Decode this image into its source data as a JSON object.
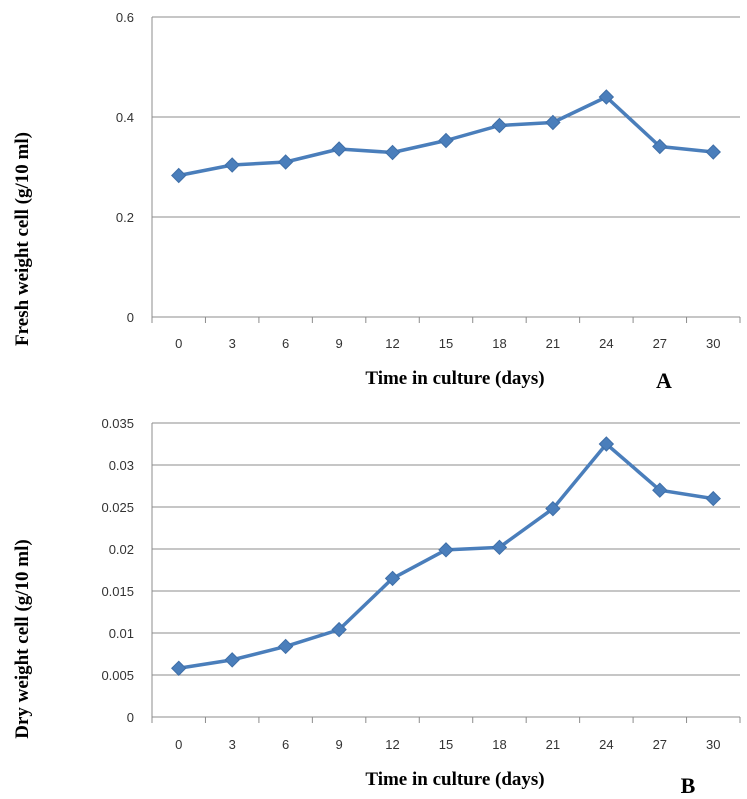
{
  "chart_data": [
    {
      "type": "line",
      "panel_label": "A",
      "xlabel": "Time in culture (days)",
      "ylabel": "Fresh weight cell (g/10 ml)",
      "categories": [
        "0",
        "3",
        "6",
        "9",
        "12",
        "15",
        "18",
        "21",
        "24",
        "27",
        "30"
      ],
      "series": [
        {
          "values": [
            0.283,
            0.304,
            0.31,
            0.336,
            0.329,
            0.353,
            0.383,
            0.389,
            0.44,
            0.341,
            0.33
          ]
        }
      ],
      "ylim": [
        0,
        0.6
      ],
      "yticks": [
        "0",
        "0.2",
        "0.4",
        "0.6"
      ],
      "grid": "horizontal",
      "line_color": "#4a7ebb"
    },
    {
      "type": "line",
      "panel_label": "B",
      "xlabel": "Time in culture (days)",
      "ylabel": "Dry weight cell (g/10 ml)",
      "categories": [
        "0",
        "3",
        "6",
        "9",
        "12",
        "15",
        "18",
        "21",
        "24",
        "27",
        "30"
      ],
      "series": [
        {
          "values": [
            0.0058,
            0.0068,
            0.0084,
            0.0104,
            0.0165,
            0.0199,
            0.0202,
            0.0248,
            0.0325,
            0.027,
            0.026
          ]
        }
      ],
      "ylim": [
        0,
        0.035
      ],
      "yticks": [
        "0",
        "0.005",
        "0.01",
        "0.015",
        "0.02",
        "0.025",
        "0.03",
        "0.035"
      ],
      "grid": "horizontal",
      "line_color": "#4a7ebb"
    }
  ]
}
